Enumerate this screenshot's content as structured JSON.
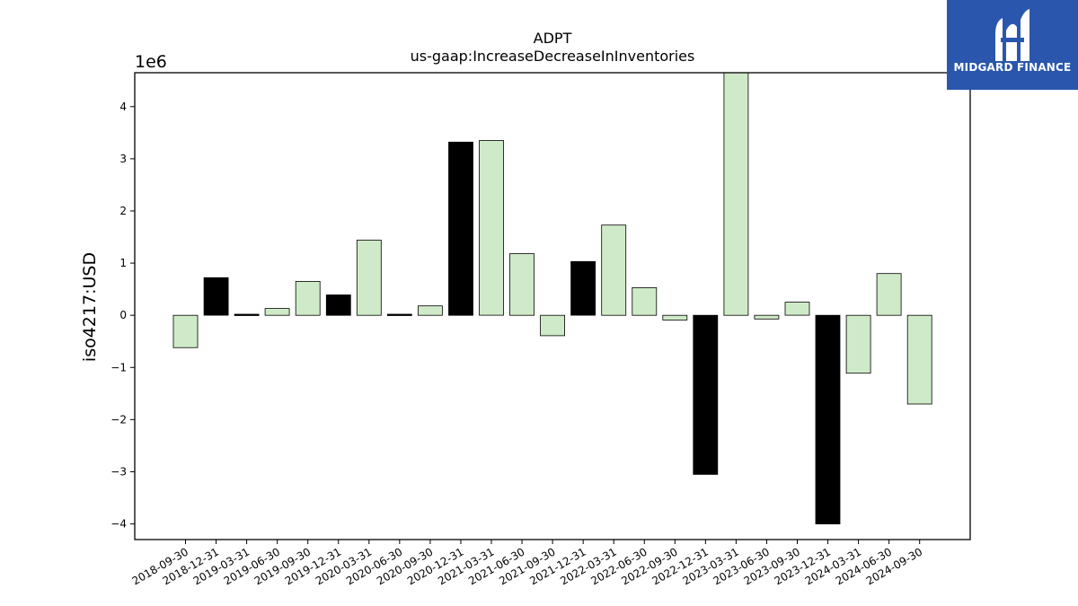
{
  "brand": {
    "name": "MIDGARD FINANCE",
    "logo_icon": "midgard-m-logo-icon",
    "background": "#2a57ad"
  },
  "chart_data": {
    "type": "bar",
    "title": "ADPT",
    "subtitle": "us-gaap:IncreaseDecreaseInInventories",
    "ylabel": "iso4217:USD",
    "y_scale_label": "1e6",
    "ylim": [
      -4.3,
      4.65
    ],
    "yticks": [
      -4,
      -3,
      -2,
      -1,
      0,
      1,
      2,
      3,
      4
    ],
    "ytick_labels": [
      "−4",
      "−3",
      "−2",
      "−1",
      "0",
      "1",
      "2",
      "3",
      "4"
    ],
    "colors": {
      "default": "#cfeac8",
      "highlight": "#000000",
      "edge": "#000000"
    },
    "categories": [
      "2018-09-30",
      "2018-12-31",
      "2019-03-31",
      "2019-06-30",
      "2019-09-30",
      "2019-12-31",
      "2020-03-31",
      "2020-06-30",
      "2020-09-30",
      "2020-12-31",
      "2021-03-31",
      "2021-06-30",
      "2021-09-30",
      "2021-12-31",
      "2022-03-31",
      "2022-06-30",
      "2022-09-30",
      "2022-12-31",
      "2023-03-31",
      "2023-06-30",
      "2023-09-30",
      "2023-12-31",
      "2024-03-31",
      "2024-06-30",
      "2024-09-30"
    ],
    "values": [
      -620000,
      720000,
      20000,
      130000,
      650000,
      390000,
      1440000,
      20000,
      180000,
      3320000,
      3350000,
      1180000,
      -390000,
      1030000,
      1730000,
      530000,
      -90000,
      -3050000,
      4650000,
      -70000,
      250000,
      -4000000,
      -1110000,
      800000,
      -1700000
    ],
    "highlight": [
      false,
      true,
      true,
      false,
      false,
      true,
      false,
      true,
      false,
      true,
      false,
      false,
      false,
      true,
      false,
      false,
      false,
      true,
      false,
      false,
      false,
      true,
      false,
      false,
      false
    ]
  }
}
